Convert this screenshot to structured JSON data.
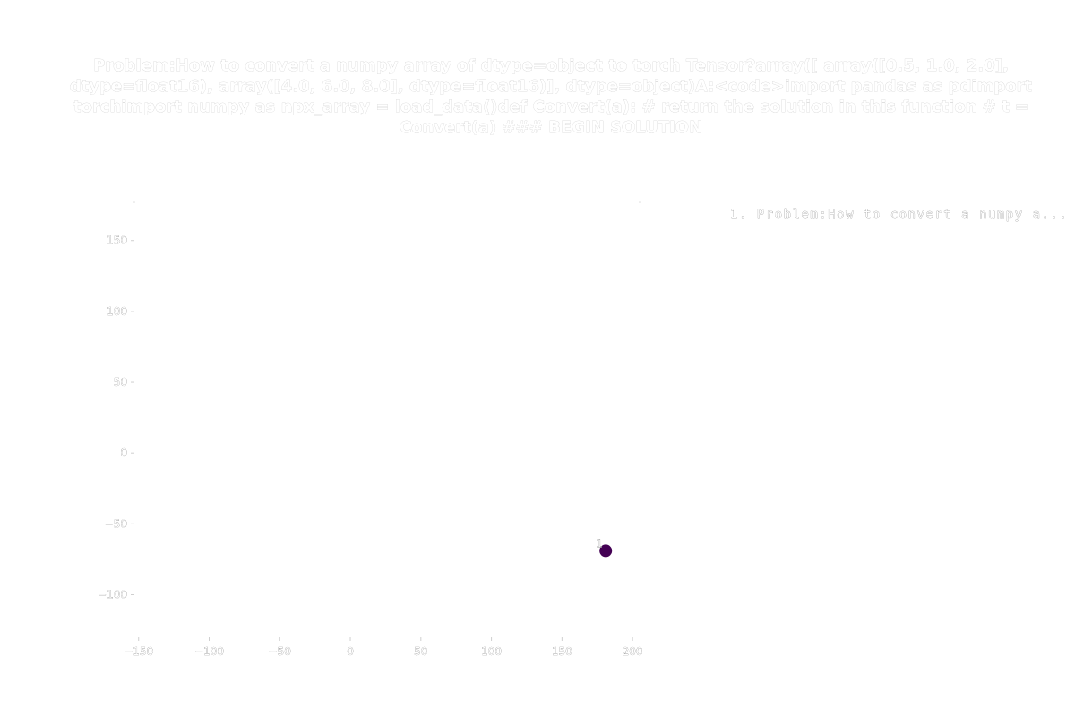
{
  "chart_data": {
    "type": "scatter",
    "title": "Problem:How to convert a numpy array of dtype=object to torch Tensor?array([   array([0.5, 1.0, 2.0], dtype=float16),    array([4.0, 6.0, 8.0], dtype=float16)], dtype=object)A:<code>import pandas as pdimport torchimport numpy as npx_array = load_data()def Convert(a):    # return the solution in this function    # t = Convert(a)    ### BEGIN SOLUTION",
    "xlabel": "",
    "ylabel": "",
    "xlim": [
      -153,
      205
    ],
    "ylim": [
      -130,
      177
    ],
    "x_ticks": [
      -150,
      -100,
      -50,
      0,
      50,
      100,
      150,
      200
    ],
    "y_ticks": [
      -100,
      -50,
      0,
      50,
      100,
      150
    ],
    "x_tick_labels": [
      "−150",
      "−100",
      "−50",
      "0",
      "50",
      "100",
      "150",
      "200"
    ],
    "y_tick_labels": [
      "−100",
      "−50",
      "0",
      "50",
      "100",
      "150"
    ],
    "grid": false,
    "legend_position": "top-right",
    "legend": [
      "1. Problem:How to convert a numpy a..."
    ],
    "points": [
      {
        "x": 181,
        "y": -69,
        "label": "1",
        "color": "#440154"
      }
    ]
  }
}
